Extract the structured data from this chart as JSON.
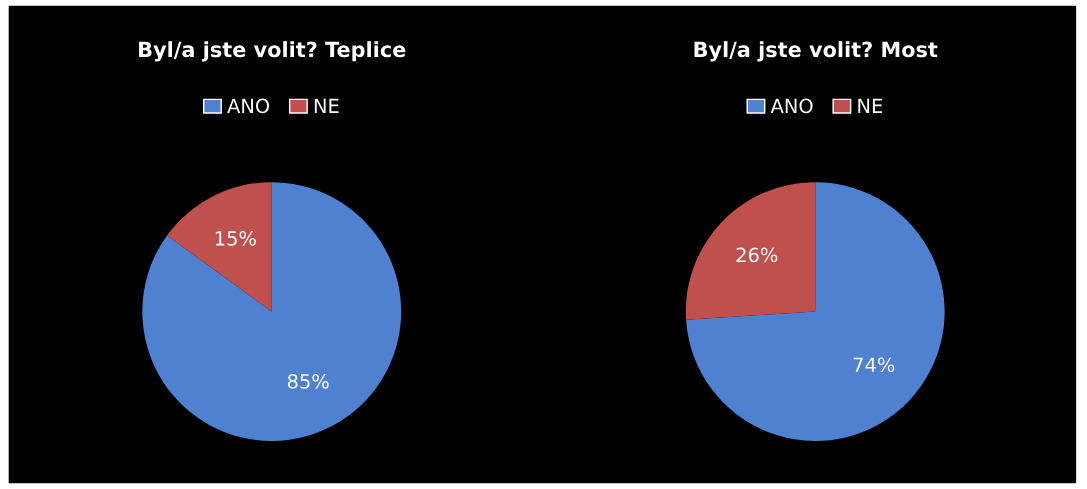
{
  "chart_data": [
    {
      "type": "pie",
      "title": "Byl/a jste volit? Teplice",
      "categories": [
        "ANO",
        "NE"
      ],
      "values": [
        85,
        15
      ],
      "colors": [
        "#4f81d0",
        "#c0504d"
      ],
      "value_labels": [
        "85%",
        "15%"
      ],
      "legend": "top"
    },
    {
      "type": "pie",
      "title": "Byl/a jste volit? Most",
      "categories": [
        "ANO",
        "NE"
      ],
      "values": [
        74,
        26
      ],
      "colors": [
        "#4f81d0",
        "#c0504d"
      ],
      "value_labels": [
        "74%",
        "26%"
      ],
      "legend": "top"
    }
  ]
}
